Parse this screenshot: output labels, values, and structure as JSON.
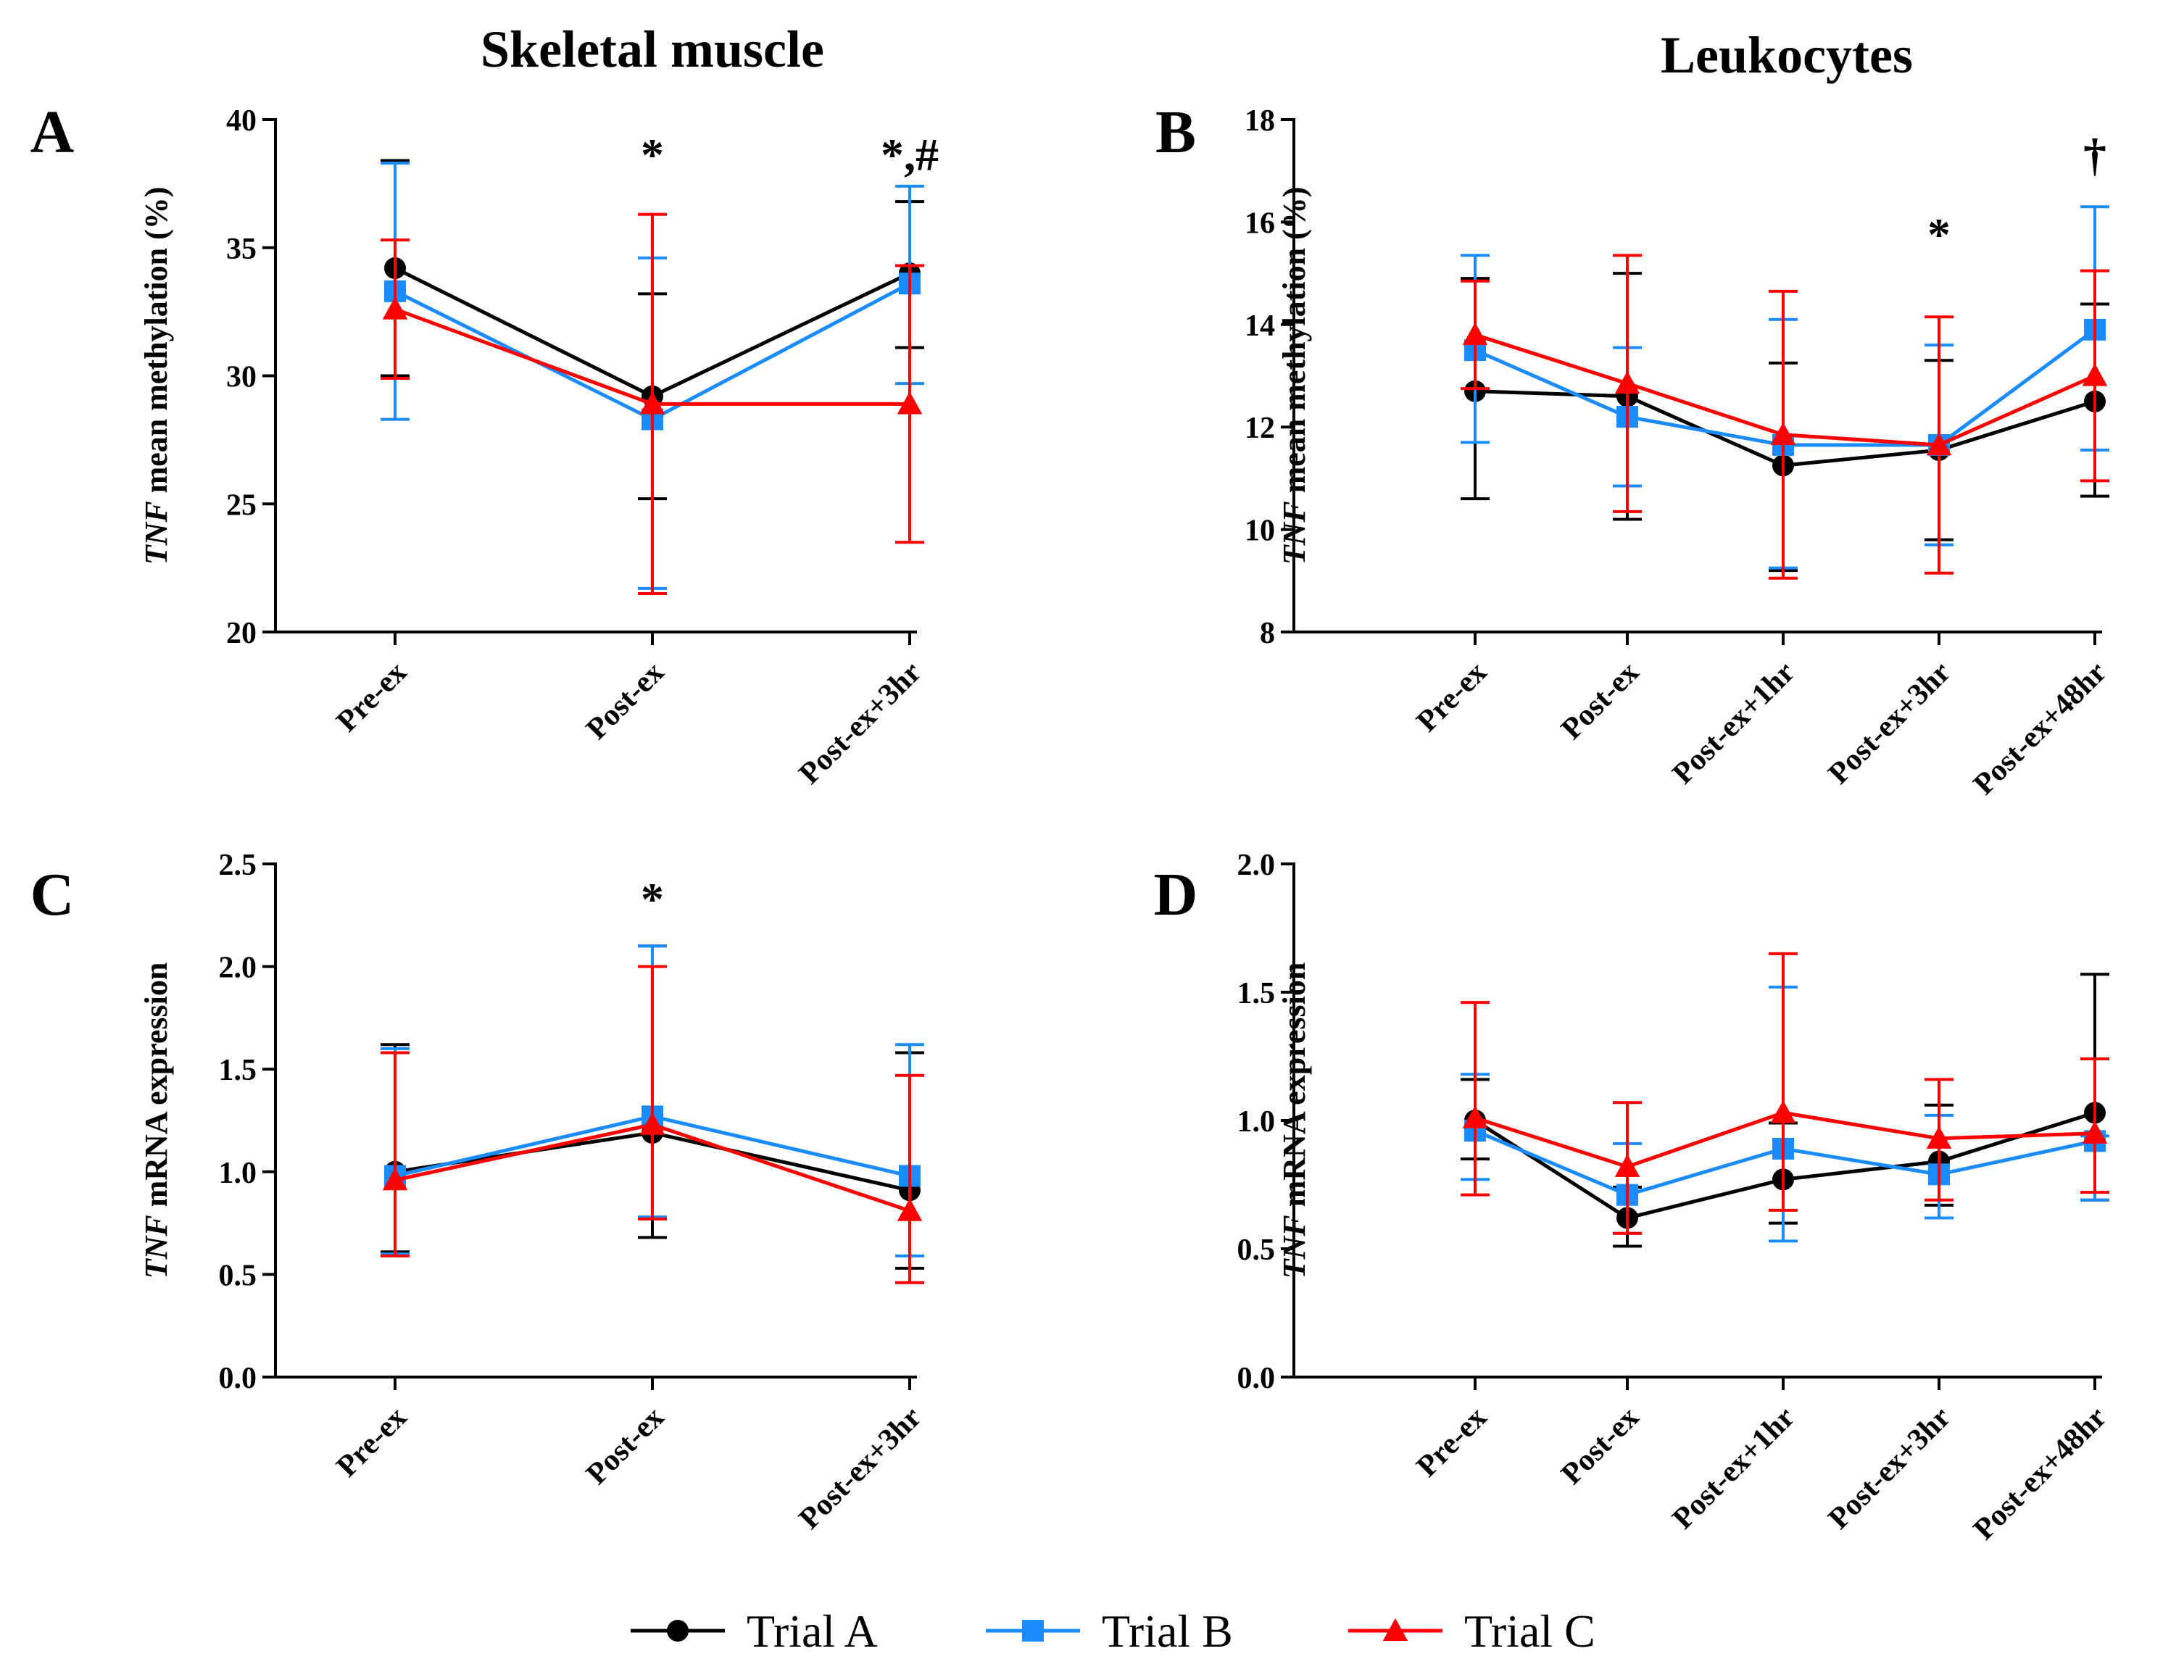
{
  "figure": {
    "column_titles": [
      "Skeletal muscle",
      "Leukocytes"
    ],
    "series_styles": [
      {
        "name": "Trial A",
        "color": "#000000",
        "marker": "circle"
      },
      {
        "name": "Trial B",
        "color": "#1a8cff",
        "marker": "square"
      },
      {
        "name": "Trial C",
        "color": "#ff0000",
        "marker": "triangle"
      }
    ]
  },
  "chart_data": [
    {
      "panel": "A",
      "type": "line",
      "column": "Skeletal muscle",
      "ylabel_italic": "TNF",
      "ylabel": " mean methylation (%)",
      "categories": [
        "Pre-ex",
        "Post-ex",
        "Post-ex+3hr"
      ],
      "ylim": [
        20,
        40
      ],
      "yticks": [
        20,
        25,
        30,
        35,
        40
      ],
      "ytick_labels": [
        "20",
        "25",
        "30",
        "35",
        "40"
      ],
      "annotations": [
        {
          "category": 1,
          "text": "*"
        },
        {
          "category": 2,
          "text": "*,#"
        }
      ],
      "series": [
        {
          "name": "Trial A",
          "values": [
            34.2,
            29.2,
            34.0
          ],
          "err_low": [
            30.0,
            25.2,
            31.1
          ],
          "err_high": [
            38.4,
            33.2,
            36.8
          ]
        },
        {
          "name": "Trial B",
          "values": [
            33.3,
            28.3,
            33.6
          ],
          "err_low": [
            28.3,
            21.7,
            29.7
          ],
          "err_high": [
            38.3,
            34.6,
            37.4
          ]
        },
        {
          "name": "Trial C",
          "values": [
            32.6,
            28.9,
            28.9
          ],
          "err_low": [
            29.9,
            21.5,
            23.5
          ],
          "err_high": [
            35.3,
            36.3,
            34.3
          ]
        }
      ]
    },
    {
      "panel": "B",
      "type": "line",
      "column": "Leukocytes",
      "ylabel_italic": "TNF",
      "ylabel": " mean methylation (%)",
      "categories": [
        "Pre-ex",
        "Post-ex",
        "Post-ex+1hr",
        "Post-ex+3hr",
        "Post-ex+48hr"
      ],
      "ylim": [
        8,
        18
      ],
      "yticks": [
        8,
        10,
        12,
        14,
        16,
        18
      ],
      "ytick_labels": [
        "8",
        "10",
        "12",
        "14",
        "16",
        "18"
      ],
      "annotations": [
        {
          "category": 3,
          "text": "*"
        },
        {
          "category": 4,
          "text": "†"
        }
      ],
      "series": [
        {
          "name": "Trial A",
          "values": [
            12.7,
            12.6,
            11.25,
            11.55,
            12.5
          ],
          "err_low": [
            10.6,
            10.2,
            9.2,
            9.8,
            10.65
          ],
          "err_high": [
            14.9,
            15.0,
            13.25,
            13.3,
            14.4
          ]
        },
        {
          "name": "Trial B",
          "values": [
            13.5,
            12.2,
            11.65,
            11.65,
            13.9
          ],
          "err_low": [
            11.7,
            10.85,
            9.25,
            9.7,
            11.55
          ],
          "err_high": [
            15.35,
            13.55,
            14.1,
            13.6,
            16.3
          ]
        },
        {
          "name": "Trial C",
          "values": [
            13.8,
            12.85,
            11.85,
            11.65,
            13.0
          ],
          "err_low": [
            12.75,
            10.35,
            9.05,
            9.15,
            10.95
          ],
          "err_high": [
            14.85,
            15.35,
            14.65,
            14.15,
            15.05
          ]
        }
      ]
    },
    {
      "panel": "C",
      "type": "line",
      "column": "Skeletal muscle",
      "ylabel_italic": "TNF",
      "ylabel": " mRNA expression",
      "categories": [
        "Pre-ex",
        "Post-ex",
        "Post-ex+3hr"
      ],
      "ylim": [
        0,
        2.5
      ],
      "yticks": [
        0,
        0.5,
        1.0,
        1.5,
        2.0,
        2.5
      ],
      "ytick_labels": [
        "0.0",
        "0.5",
        "1.0",
        "1.5",
        "2.0",
        "2.5"
      ],
      "annotations": [
        {
          "category": 1,
          "text": "*"
        }
      ],
      "series": [
        {
          "name": "Trial A",
          "values": [
            1.0,
            1.19,
            0.91
          ],
          "err_low": [
            0.61,
            0.68,
            0.53
          ],
          "err_high": [
            1.62,
            2.1,
            1.58
          ]
        },
        {
          "name": "Trial B",
          "values": [
            0.98,
            1.27,
            0.98
          ],
          "err_low": [
            0.6,
            0.78,
            0.59
          ],
          "err_high": [
            1.6,
            2.1,
            1.62
          ]
        },
        {
          "name": "Trial C",
          "values": [
            0.96,
            1.23,
            0.81
          ],
          "err_low": [
            0.59,
            0.77,
            0.46
          ],
          "err_high": [
            1.58,
            2.0,
            1.47
          ]
        }
      ]
    },
    {
      "panel": "D",
      "type": "line",
      "column": "Leukocytes",
      "ylabel_italic": "TNF",
      "ylabel": " mRNA expression",
      "categories": [
        "Pre-ex",
        "Post-ex",
        "Post-ex+1hr",
        "Post-ex+3hr",
        "Post-ex+48hr"
      ],
      "ylim": [
        0,
        2.0
      ],
      "yticks": [
        0,
        0.5,
        1.0,
        1.5,
        2.0
      ],
      "ytick_labels": [
        "0.0",
        "0.5",
        "1.0",
        "1.5",
        "2.0"
      ],
      "annotations": [],
      "series": [
        {
          "name": "Trial A",
          "values": [
            1.0,
            0.62,
            0.77,
            0.84,
            1.03
          ],
          "err_low": [
            0.85,
            0.51,
            0.6,
            0.67,
            0.69
          ],
          "err_high": [
            1.16,
            0.74,
            0.99,
            1.06,
            1.57
          ]
        },
        {
          "name": "Trial B",
          "values": [
            0.96,
            0.71,
            0.89,
            0.79,
            0.92
          ],
          "err_low": [
            0.77,
            0.56,
            0.53,
            0.62,
            0.69
          ],
          "err_high": [
            1.18,
            0.91,
            1.52,
            1.02,
            0.94
          ]
        },
        {
          "name": "Trial C",
          "values": [
            1.01,
            0.82,
            1.03,
            0.93,
            0.95
          ],
          "err_low": [
            0.71,
            0.56,
            0.65,
            0.69,
            0.72
          ],
          "err_high": [
            1.46,
            1.07,
            1.65,
            1.16,
            1.24
          ]
        }
      ]
    }
  ]
}
